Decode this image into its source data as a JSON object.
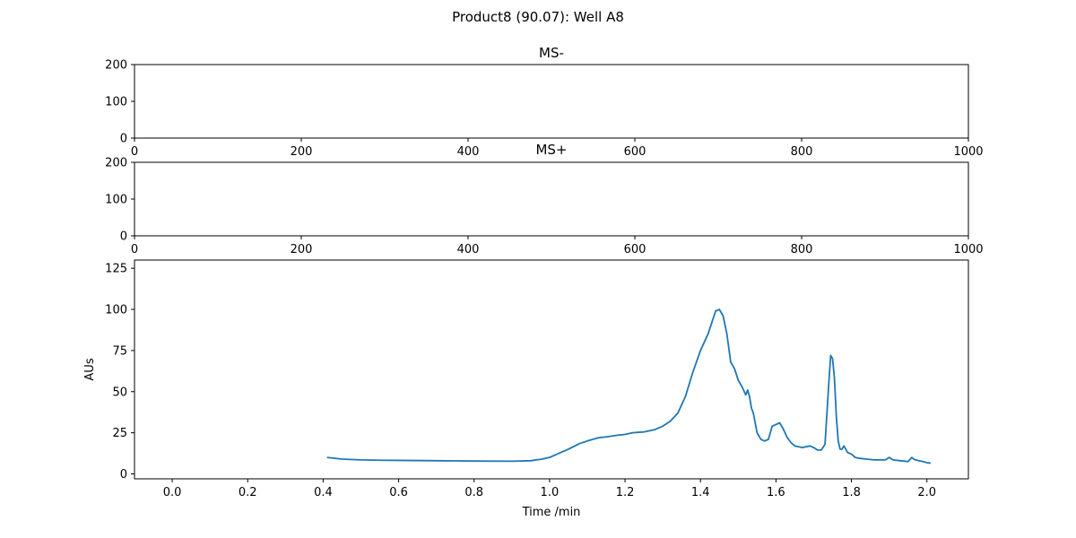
{
  "figure": {
    "title": "Product8 (90.07): Well A8"
  },
  "chart_data": [
    {
      "type": "line",
      "title": "MS-",
      "xlabel": "",
      "ylabel": "",
      "xlim": [
        0,
        1000
      ],
      "ylim": [
        0,
        200
      ],
      "xticks": [
        "0",
        "200",
        "400",
        "600",
        "800",
        "1000"
      ],
      "yticks": [
        "0",
        "100",
        "200"
      ],
      "series": []
    },
    {
      "type": "line",
      "title": "MS+",
      "xlabel": "",
      "ylabel": "",
      "xlim": [
        0,
        1000
      ],
      "ylim": [
        0,
        200
      ],
      "xticks": [
        "0",
        "200",
        "400",
        "600",
        "800",
        "1000"
      ],
      "yticks": [
        "0",
        "100",
        "200"
      ],
      "series": []
    },
    {
      "type": "line",
      "title": "",
      "xlabel": "Time /min",
      "ylabel": "AUs",
      "xlim": [
        -0.1,
        2.11
      ],
      "ylim": [
        -3,
        130
      ],
      "xticks": [
        "0.0",
        "0.2",
        "0.4",
        "0.6",
        "0.8",
        "1.0",
        "1.2",
        "1.4",
        "1.6",
        "1.8",
        "2.0"
      ],
      "yticks": [
        "0",
        "25",
        "50",
        "75",
        "100",
        "125"
      ],
      "color": "#1f77b4",
      "series": [
        {
          "x": [
            0.41,
            0.45,
            0.5,
            0.55,
            0.6,
            0.7,
            0.8,
            0.9,
            0.95,
            0.98,
            1.0,
            1.02,
            1.05,
            1.08,
            1.1,
            1.13,
            1.15,
            1.18,
            1.2,
            1.22,
            1.25,
            1.28,
            1.3,
            1.32,
            1.34,
            1.36,
            1.38,
            1.4,
            1.42,
            1.43,
            1.44,
            1.45,
            1.46,
            1.47,
            1.48,
            1.49,
            1.5,
            1.51,
            1.52,
            1.525,
            1.53,
            1.535,
            1.54,
            1.55,
            1.56,
            1.57,
            1.58,
            1.59,
            1.6,
            1.61,
            1.62,
            1.63,
            1.64,
            1.65,
            1.67,
            1.69,
            1.7,
            1.71,
            1.72,
            1.73,
            1.74,
            1.745,
            1.75,
            1.755,
            1.76,
            1.765,
            1.77,
            1.775,
            1.78,
            1.79,
            1.8,
            1.805,
            1.81,
            1.82,
            1.84,
            1.86,
            1.88,
            1.89,
            1.9,
            1.91,
            1.93,
            1.95,
            1.96,
            1.965,
            1.97,
            1.98,
            1.99,
            2.0,
            2.01
          ],
          "y": [
            10,
            9,
            8.5,
            8.3,
            8.2,
            8,
            7.8,
            7.7,
            8,
            9,
            10,
            12,
            15,
            18.5,
            20,
            22,
            22.5,
            23.5,
            24,
            25,
            25.5,
            27,
            29,
            32,
            37,
            47,
            62,
            75,
            85,
            92,
            99,
            100,
            96,
            85,
            68,
            64,
            57,
            53,
            48,
            51,
            47,
            40,
            37,
            25,
            21,
            20,
            21,
            29,
            30,
            31,
            27,
            22,
            19,
            17,
            16,
            17,
            16,
            14.5,
            14.5,
            18,
            55,
            72,
            70,
            58,
            35,
            20,
            15,
            15,
            17,
            13,
            12,
            11,
            10,
            9.5,
            9,
            8.5,
            8.5,
            8.5,
            10,
            8.5,
            8,
            7.5,
            10,
            9,
            8.5,
            8,
            7.5,
            6.8,
            6.5
          ]
        }
      ]
    }
  ]
}
